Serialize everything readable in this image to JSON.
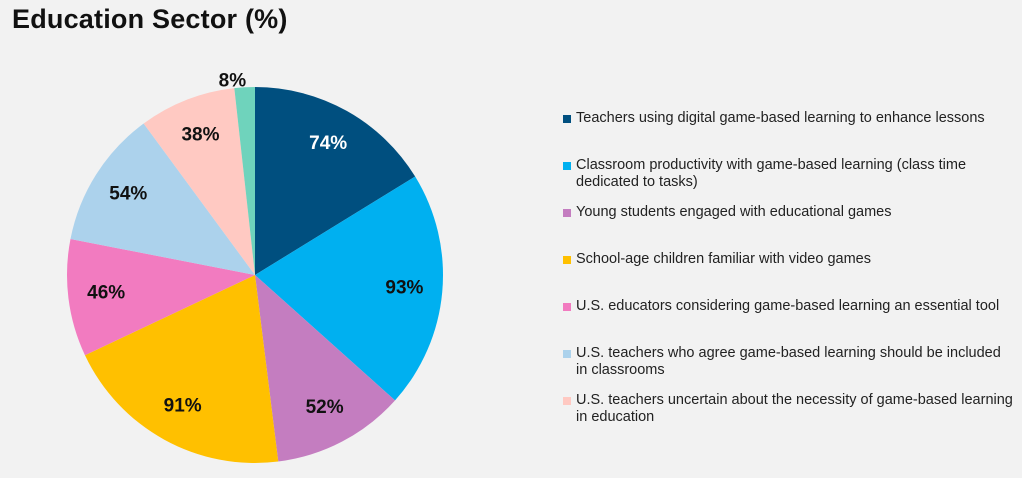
{
  "title": "Education Sector (%)",
  "chart_data": {
    "type": "pie",
    "title": "Education Sector (%)",
    "legend_position": "right",
    "slices": [
      {
        "label": "Teachers using digital game-based learning to enhance lessons",
        "value": 74,
        "value_label": "74%",
        "color": "#004f7f",
        "label_color": "#ffffff"
      },
      {
        "label": "Classroom productivity with game-based learning (class time dedicated to tasks)",
        "value": 93,
        "value_label": "93%",
        "color": "#00b0f0",
        "label_color": "#111111"
      },
      {
        "label": "Young students engaged with educational games",
        "value": 52,
        "value_label": "52%",
        "color": "#c47dc0",
        "label_color": "#111111"
      },
      {
        "label": "School-age children familiar with video games",
        "value": 91,
        "value_label": "91%",
        "color": "#ffc000",
        "label_color": "#111111"
      },
      {
        "label": "U.S. educators considering game-based learning an essential tool",
        "value": 46,
        "value_label": "46%",
        "color": "#f27bc0",
        "label_color": "#111111"
      },
      {
        "label": "U.S. teachers who agree game-based learning should be included in classrooms",
        "value": 54,
        "value_label": "54%",
        "color": "#acd2ec",
        "label_color": "#111111"
      },
      {
        "label": "U.S. teachers uncertain about the necessity of game-based learning in education",
        "value": 38,
        "value_label": "38%",
        "color": "#ffc9c2",
        "label_color": "#111111"
      },
      {
        "label": "",
        "value": 8,
        "value_label": "8%",
        "color": "#6fd3bc",
        "label_color": "#111111"
      }
    ]
  }
}
